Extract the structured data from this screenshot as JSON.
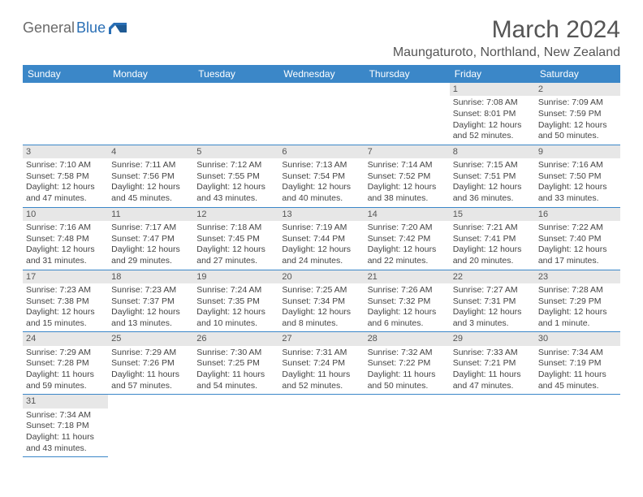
{
  "brand": {
    "part1": "General",
    "part2": "Blue"
  },
  "title": "March 2024",
  "location": "Maungaturoto, Northland, New Zealand",
  "header_bg": "#3b87c8",
  "day_bg": "#e7e7e7",
  "border_color": "#3b87c8",
  "text_color": "#444444",
  "title_color": "#555555",
  "days_of_week": [
    "Sunday",
    "Monday",
    "Tuesday",
    "Wednesday",
    "Thursday",
    "Friday",
    "Saturday"
  ],
  "weeks": [
    [
      {
        "empty": true
      },
      {
        "empty": true
      },
      {
        "empty": true
      },
      {
        "empty": true
      },
      {
        "empty": true
      },
      {
        "day": "1",
        "sunrise": "Sunrise: 7:08 AM",
        "sunset": "Sunset: 8:01 PM",
        "daylight": "Daylight: 12 hours and 52 minutes."
      },
      {
        "day": "2",
        "sunrise": "Sunrise: 7:09 AM",
        "sunset": "Sunset: 7:59 PM",
        "daylight": "Daylight: 12 hours and 50 minutes."
      }
    ],
    [
      {
        "day": "3",
        "sunrise": "Sunrise: 7:10 AM",
        "sunset": "Sunset: 7:58 PM",
        "daylight": "Daylight: 12 hours and 47 minutes."
      },
      {
        "day": "4",
        "sunrise": "Sunrise: 7:11 AM",
        "sunset": "Sunset: 7:56 PM",
        "daylight": "Daylight: 12 hours and 45 minutes."
      },
      {
        "day": "5",
        "sunrise": "Sunrise: 7:12 AM",
        "sunset": "Sunset: 7:55 PM",
        "daylight": "Daylight: 12 hours and 43 minutes."
      },
      {
        "day": "6",
        "sunrise": "Sunrise: 7:13 AM",
        "sunset": "Sunset: 7:54 PM",
        "daylight": "Daylight: 12 hours and 40 minutes."
      },
      {
        "day": "7",
        "sunrise": "Sunrise: 7:14 AM",
        "sunset": "Sunset: 7:52 PM",
        "daylight": "Daylight: 12 hours and 38 minutes."
      },
      {
        "day": "8",
        "sunrise": "Sunrise: 7:15 AM",
        "sunset": "Sunset: 7:51 PM",
        "daylight": "Daylight: 12 hours and 36 minutes."
      },
      {
        "day": "9",
        "sunrise": "Sunrise: 7:16 AM",
        "sunset": "Sunset: 7:50 PM",
        "daylight": "Daylight: 12 hours and 33 minutes."
      }
    ],
    [
      {
        "day": "10",
        "sunrise": "Sunrise: 7:16 AM",
        "sunset": "Sunset: 7:48 PM",
        "daylight": "Daylight: 12 hours and 31 minutes."
      },
      {
        "day": "11",
        "sunrise": "Sunrise: 7:17 AM",
        "sunset": "Sunset: 7:47 PM",
        "daylight": "Daylight: 12 hours and 29 minutes."
      },
      {
        "day": "12",
        "sunrise": "Sunrise: 7:18 AM",
        "sunset": "Sunset: 7:45 PM",
        "daylight": "Daylight: 12 hours and 27 minutes."
      },
      {
        "day": "13",
        "sunrise": "Sunrise: 7:19 AM",
        "sunset": "Sunset: 7:44 PM",
        "daylight": "Daylight: 12 hours and 24 minutes."
      },
      {
        "day": "14",
        "sunrise": "Sunrise: 7:20 AM",
        "sunset": "Sunset: 7:42 PM",
        "daylight": "Daylight: 12 hours and 22 minutes."
      },
      {
        "day": "15",
        "sunrise": "Sunrise: 7:21 AM",
        "sunset": "Sunset: 7:41 PM",
        "daylight": "Daylight: 12 hours and 20 minutes."
      },
      {
        "day": "16",
        "sunrise": "Sunrise: 7:22 AM",
        "sunset": "Sunset: 7:40 PM",
        "daylight": "Daylight: 12 hours and 17 minutes."
      }
    ],
    [
      {
        "day": "17",
        "sunrise": "Sunrise: 7:23 AM",
        "sunset": "Sunset: 7:38 PM",
        "daylight": "Daylight: 12 hours and 15 minutes."
      },
      {
        "day": "18",
        "sunrise": "Sunrise: 7:23 AM",
        "sunset": "Sunset: 7:37 PM",
        "daylight": "Daylight: 12 hours and 13 minutes."
      },
      {
        "day": "19",
        "sunrise": "Sunrise: 7:24 AM",
        "sunset": "Sunset: 7:35 PM",
        "daylight": "Daylight: 12 hours and 10 minutes."
      },
      {
        "day": "20",
        "sunrise": "Sunrise: 7:25 AM",
        "sunset": "Sunset: 7:34 PM",
        "daylight": "Daylight: 12 hours and 8 minutes."
      },
      {
        "day": "21",
        "sunrise": "Sunrise: 7:26 AM",
        "sunset": "Sunset: 7:32 PM",
        "daylight": "Daylight: 12 hours and 6 minutes."
      },
      {
        "day": "22",
        "sunrise": "Sunrise: 7:27 AM",
        "sunset": "Sunset: 7:31 PM",
        "daylight": "Daylight: 12 hours and 3 minutes."
      },
      {
        "day": "23",
        "sunrise": "Sunrise: 7:28 AM",
        "sunset": "Sunset: 7:29 PM",
        "daylight": "Daylight: 12 hours and 1 minute."
      }
    ],
    [
      {
        "day": "24",
        "sunrise": "Sunrise: 7:29 AM",
        "sunset": "Sunset: 7:28 PM",
        "daylight": "Daylight: 11 hours and 59 minutes."
      },
      {
        "day": "25",
        "sunrise": "Sunrise: 7:29 AM",
        "sunset": "Sunset: 7:26 PM",
        "daylight": "Daylight: 11 hours and 57 minutes."
      },
      {
        "day": "26",
        "sunrise": "Sunrise: 7:30 AM",
        "sunset": "Sunset: 7:25 PM",
        "daylight": "Daylight: 11 hours and 54 minutes."
      },
      {
        "day": "27",
        "sunrise": "Sunrise: 7:31 AM",
        "sunset": "Sunset: 7:24 PM",
        "daylight": "Daylight: 11 hours and 52 minutes."
      },
      {
        "day": "28",
        "sunrise": "Sunrise: 7:32 AM",
        "sunset": "Sunset: 7:22 PM",
        "daylight": "Daylight: 11 hours and 50 minutes."
      },
      {
        "day": "29",
        "sunrise": "Sunrise: 7:33 AM",
        "sunset": "Sunset: 7:21 PM",
        "daylight": "Daylight: 11 hours and 47 minutes."
      },
      {
        "day": "30",
        "sunrise": "Sunrise: 7:34 AM",
        "sunset": "Sunset: 7:19 PM",
        "daylight": "Daylight: 11 hours and 45 minutes."
      }
    ],
    [
      {
        "day": "31",
        "sunrise": "Sunrise: 7:34 AM",
        "sunset": "Sunset: 7:18 PM",
        "daylight": "Daylight: 11 hours and 43 minutes."
      },
      {
        "empty": true
      },
      {
        "empty": true
      },
      {
        "empty": true
      },
      {
        "empty": true
      },
      {
        "empty": true
      },
      {
        "empty": true
      }
    ]
  ]
}
